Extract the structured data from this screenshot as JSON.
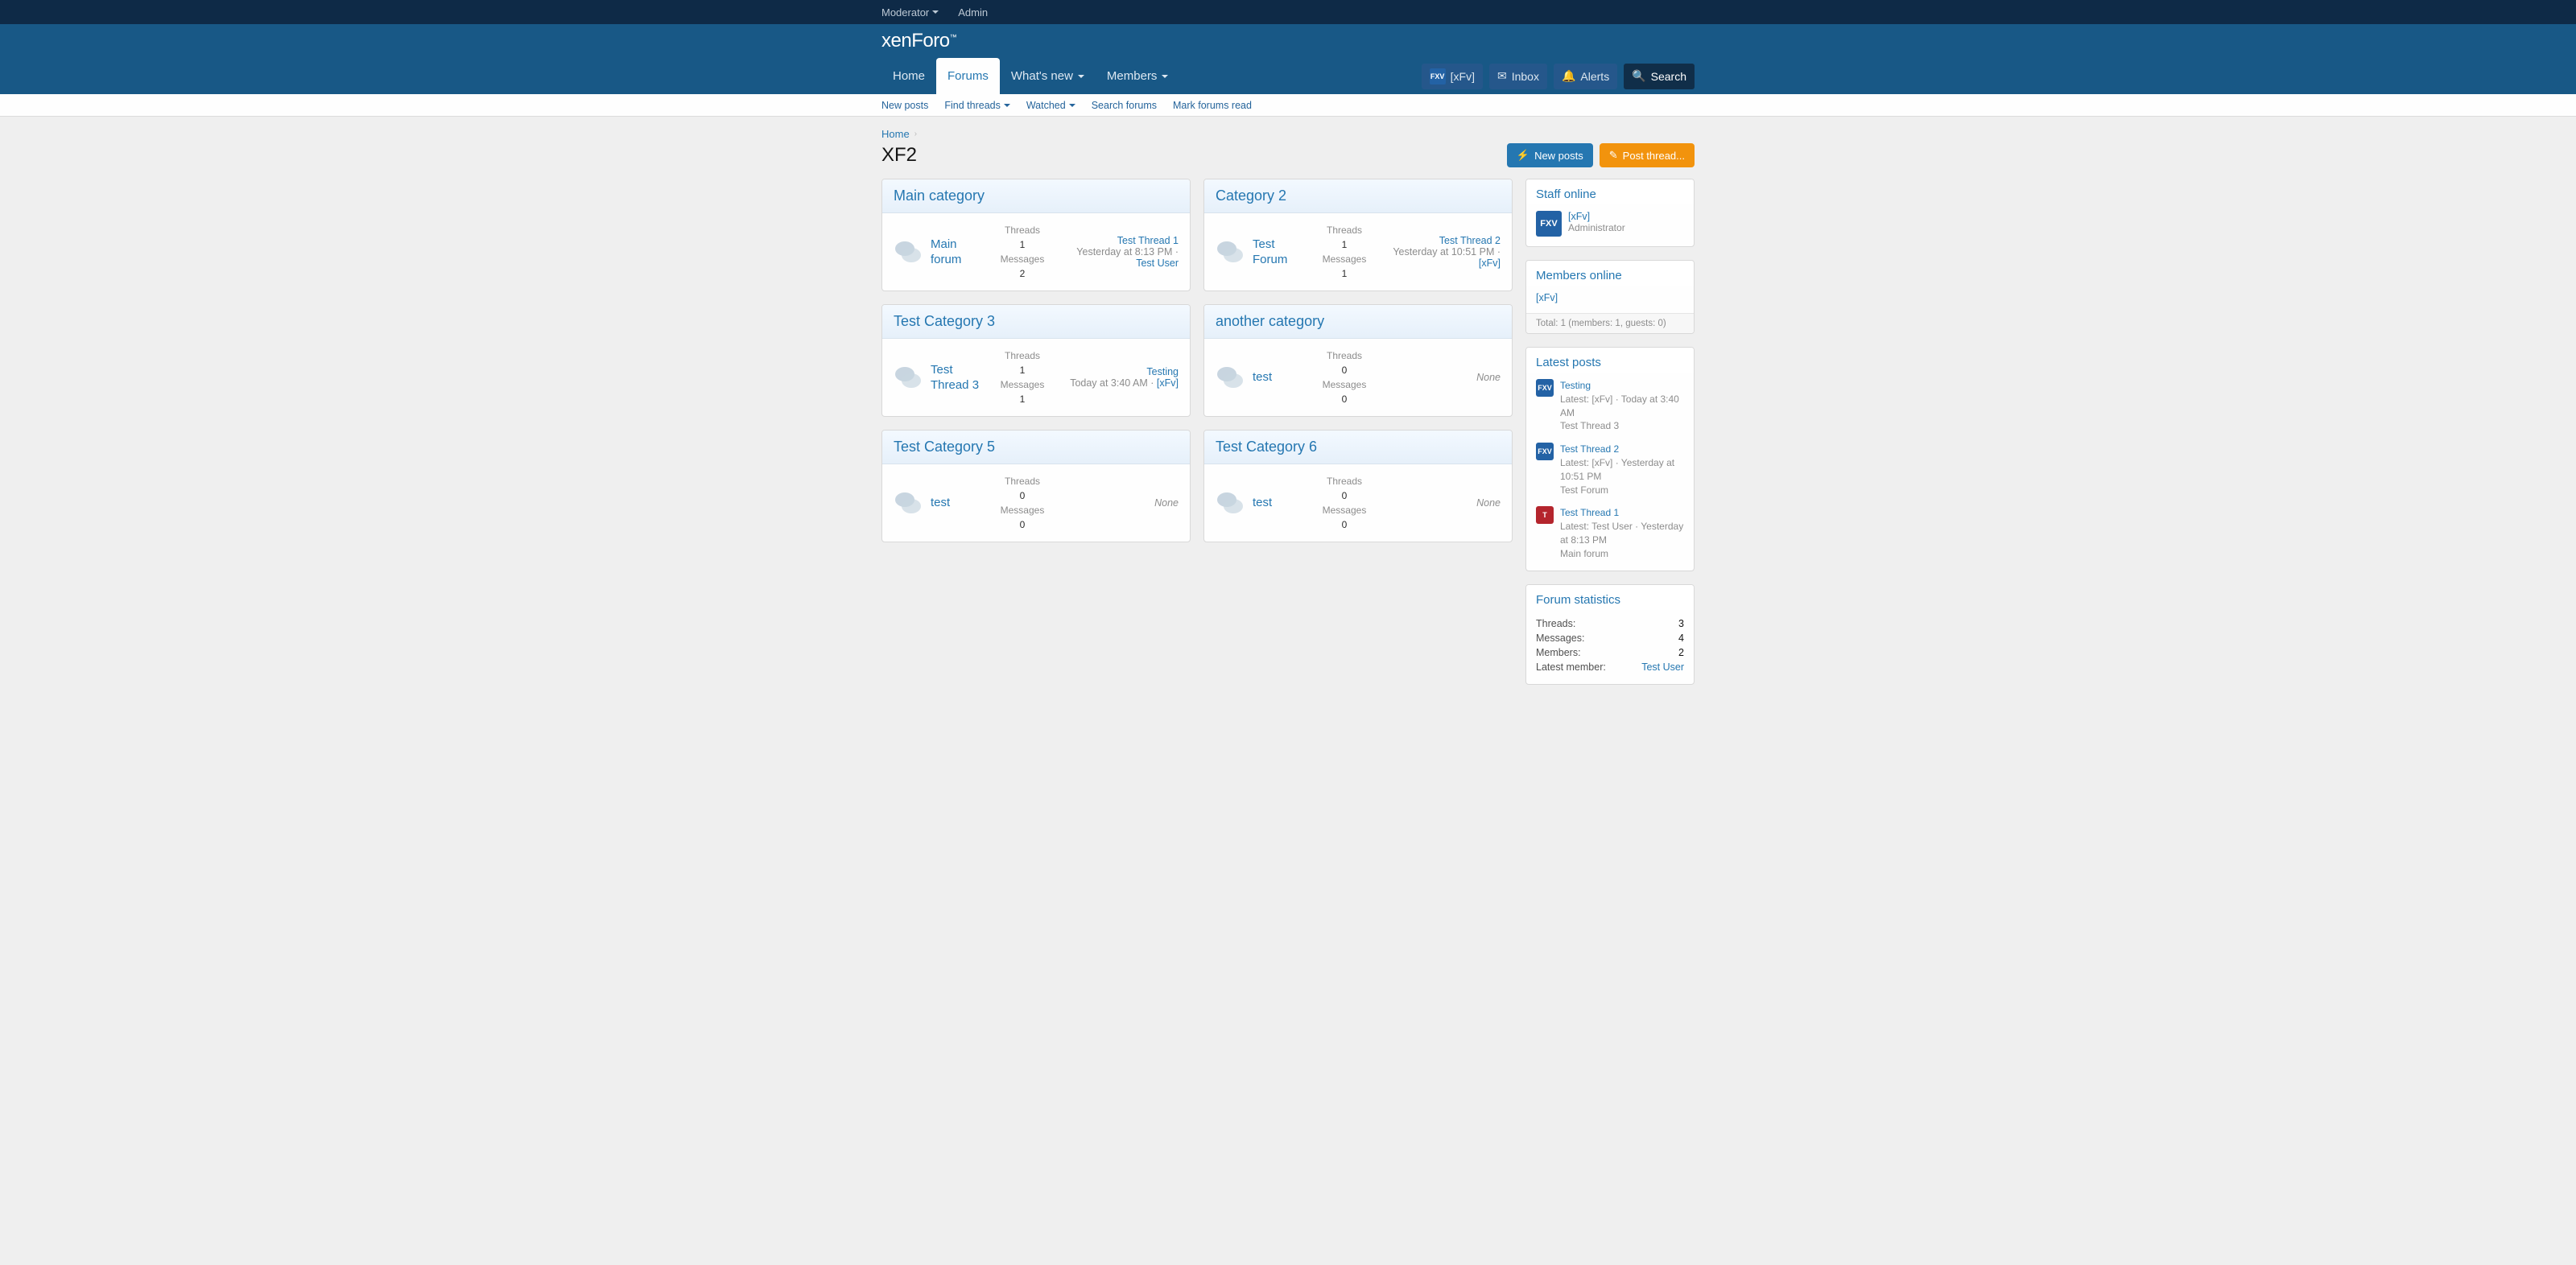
{
  "adminbar": {
    "moderator": "Moderator",
    "admin": "Admin"
  },
  "logo_a": "xen",
  "logo_b": "Foro",
  "nav": {
    "home": "Home",
    "forums": "Forums",
    "whatsnew": "What's new",
    "members": "Members"
  },
  "visitor": {
    "badge": "FXV",
    "name": "[xFv]",
    "inbox": "Inbox",
    "alerts": "Alerts",
    "search": "Search"
  },
  "subnav": {
    "newposts": "New posts",
    "findthreads": "Find threads",
    "watched": "Watched",
    "searchforums": "Search forums",
    "markread": "Mark forums read"
  },
  "breadcrumb": {
    "home": "Home"
  },
  "page_title": "XF2",
  "buttons": {
    "newposts": "New posts",
    "postthread": "Post thread..."
  },
  "labels": {
    "threads": "Threads",
    "messages": "Messages"
  },
  "categories": [
    {
      "title": "Main category",
      "forum": "Main forum",
      "threads": "1",
      "messages": "2",
      "last_thread": "Test Thread 1",
      "last_time": "Yesterday at 8:13 PM",
      "last_user": "Test User",
      "none": false
    },
    {
      "title": "Category 2",
      "forum": "Test Forum",
      "threads": "1",
      "messages": "1",
      "last_thread": "Test Thread 2",
      "last_time": "Yesterday at 10:51 PM",
      "last_user": "[xFv]",
      "none": false
    },
    {
      "title": "Test Category 3",
      "forum": "Test Thread 3",
      "threads": "1",
      "messages": "1",
      "last_thread": "Testing",
      "last_time": "Today at 3:40 AM",
      "last_user": "[xFv]",
      "none": false
    },
    {
      "title": "another category",
      "forum": "test",
      "threads": "0",
      "messages": "0",
      "last_thread": "",
      "last_time": "",
      "last_user": "",
      "none": true
    },
    {
      "title": "Test Category 5",
      "forum": "test",
      "threads": "0",
      "messages": "0",
      "last_thread": "",
      "last_time": "",
      "last_user": "",
      "none": true
    },
    {
      "title": "Test Category 6",
      "forum": "test",
      "threads": "0",
      "messages": "0",
      "last_thread": "",
      "last_time": "",
      "last_user": "",
      "none": true
    }
  ],
  "none_text": "None",
  "side_staff": {
    "title": "Staff online",
    "badge": "FXV",
    "name": "[xFv]",
    "role": "Administrator"
  },
  "side_members": {
    "title": "Members online",
    "name": "[xFv]",
    "footer": "Total: 1 (members: 1, guests: 0)"
  },
  "side_latest": {
    "title": "Latest posts",
    "items": [
      {
        "badge": "FXV",
        "badge_color": "blue",
        "thread": "Testing",
        "latest": "Latest: [xFv]",
        "time": "Today at 3:40 AM",
        "forum": "Test Thread 3"
      },
      {
        "badge": "FXV",
        "badge_color": "blue",
        "thread": "Test Thread 2",
        "latest": "Latest: [xFv]",
        "time": "Yesterday at 10:51 PM",
        "forum": "Test Forum"
      },
      {
        "badge": "T",
        "badge_color": "red",
        "thread": "Test Thread 1",
        "latest": "Latest: Test User",
        "time": "Yesterday at 8:13 PM",
        "forum": "Main forum"
      }
    ]
  },
  "side_stats": {
    "title": "Forum statistics",
    "rows": [
      {
        "k": "Threads:",
        "v": "3"
      },
      {
        "k": "Messages:",
        "v": "4"
      },
      {
        "k": "Members:",
        "v": "2"
      },
      {
        "k": "Latest member:",
        "v": "Test User",
        "link": true
      }
    ]
  }
}
